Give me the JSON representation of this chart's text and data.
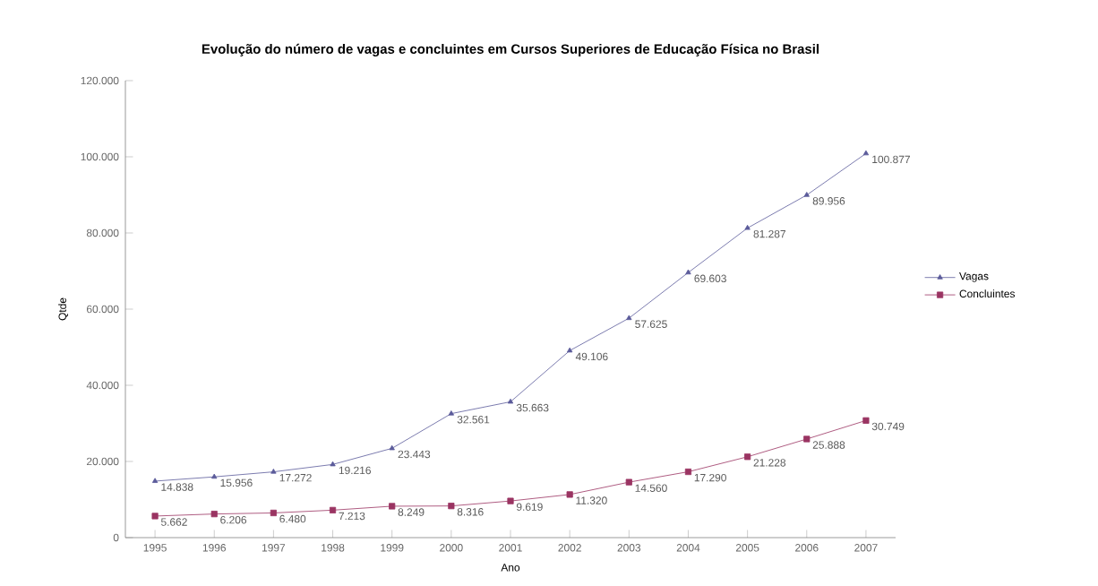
{
  "chart_data": {
    "type": "line",
    "title": "Evolução do número de vagas e concluintes em Cursos Superiores de Educação Física no Brasil",
    "xlabel": "Ano",
    "ylabel": "Qtde",
    "categories": [
      "1995",
      "1996",
      "1997",
      "1998",
      "1999",
      "2000",
      "2001",
      "2002",
      "2003",
      "2004",
      "2005",
      "2006",
      "2007"
    ],
    "series": [
      {
        "name": "Vagas",
        "color": "#5b5b9a",
        "marker": "triangle",
        "values": [
          14838,
          15956,
          17272,
          19216,
          23443,
          32561,
          35663,
          49106,
          57625,
          69603,
          81287,
          89956,
          100877
        ],
        "value_labels": [
          "14.838",
          "15.956",
          "17.272",
          "19.216",
          "23.443",
          "32.561",
          "35.663",
          "49.106",
          "57.625",
          "69.603",
          "81.287",
          "89.956",
          "100.877"
        ]
      },
      {
        "name": "Concluintes",
        "color": "#9a3462",
        "marker": "square",
        "values": [
          5662,
          6206,
          6480,
          7213,
          8249,
          8316,
          9619,
          11320,
          14560,
          17290,
          21228,
          25888,
          30749
        ],
        "value_labels": [
          "5.662",
          "6.206",
          "6.480",
          "7.213",
          "8.249",
          "8.316",
          "9.619",
          "11.320",
          "14.560",
          "17.290",
          "21.228",
          "25.888",
          "30.749"
        ]
      }
    ],
    "ylim": [
      0,
      120000
    ],
    "yticks": [
      {
        "value": 0,
        "label": "0"
      },
      {
        "value": 20000,
        "label": "20.000"
      },
      {
        "value": 40000,
        "label": "40.000"
      },
      {
        "value": 60000,
        "label": "60.000"
      },
      {
        "value": 80000,
        "label": "80.000"
      },
      {
        "value": 100000,
        "label": "100.000"
      },
      {
        "value": 120000,
        "label": "120.000"
      }
    ],
    "legend": "right",
    "line_style": "solid",
    "grid": false
  }
}
